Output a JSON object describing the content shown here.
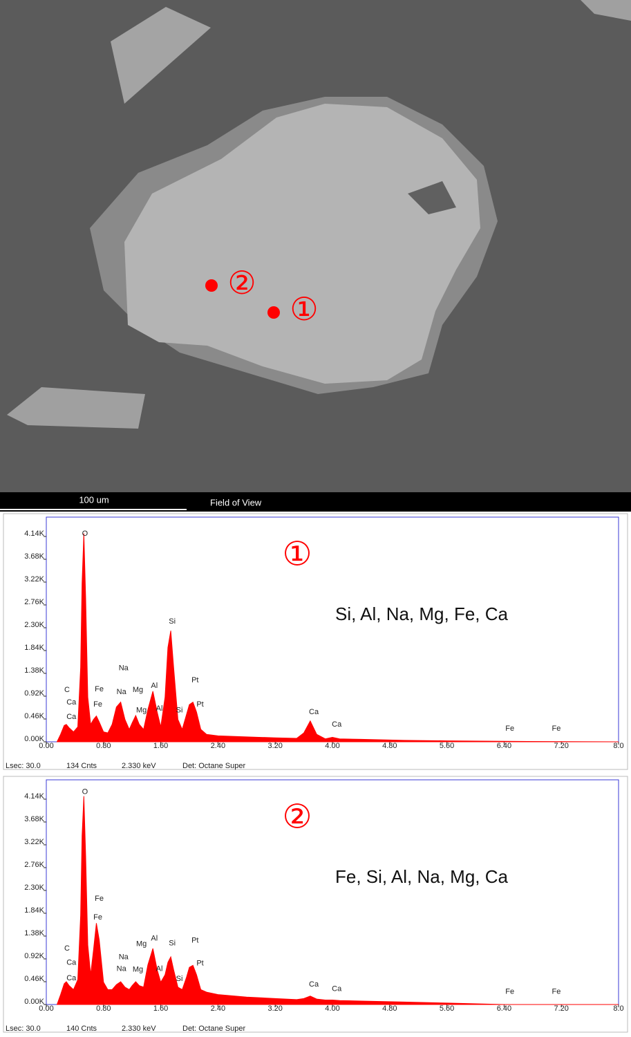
{
  "image": {
    "scale_bar": "100 um",
    "field_label": "Field of View",
    "markers": [
      "①",
      "②"
    ]
  },
  "chart_data": [
    {
      "type": "area",
      "title": "①",
      "annotation": "Si, Al, Na, Mg, Fe, Ca",
      "x": [
        0.15,
        0.2,
        0.25,
        0.28,
        0.32,
        0.38,
        0.44,
        0.48,
        0.5,
        0.525,
        0.55,
        0.58,
        0.62,
        0.66,
        0.7,
        0.74,
        0.8,
        0.86,
        0.92,
        0.98,
        1.04,
        1.1,
        1.16,
        1.2,
        1.25,
        1.3,
        1.36,
        1.42,
        1.49,
        1.55,
        1.6,
        1.66,
        1.7,
        1.74,
        1.78,
        1.84,
        1.9,
        1.96,
        2.0,
        2.05,
        2.1,
        2.16,
        2.24,
        2.4,
        2.8,
        3.2,
        3.5,
        3.6,
        3.69,
        3.78,
        3.9,
        4.0,
        4.1,
        4.4,
        5.0,
        5.6,
        6.4,
        7.0,
        8.0
      ],
      "series": [
        {
          "color": "#ff0000",
          "values": [
            0,
            150,
            330,
            350,
            280,
            200,
            300,
            1500,
            3200,
            4200,
            2900,
            900,
            350,
            450,
            520,
            400,
            200,
            180,
            350,
            700,
            800,
            450,
            250,
            380,
            530,
            350,
            250,
            650,
            1020,
            600,
            300,
            900,
            1900,
            2240,
            1500,
            450,
            250,
            550,
            750,
            800,
            600,
            250,
            150,
            120,
            100,
            80,
            70,
            180,
            420,
            150,
            60,
            90,
            60,
            50,
            30,
            20,
            10,
            5,
            0
          ]
        }
      ],
      "peaks": [
        {
          "label": "C",
          "x": 0.29,
          "y": 1045
        },
        {
          "label": "Ca",
          "x": 0.35,
          "y": 795
        },
        {
          "label": "Ca",
          "x": 0.35,
          "y": 500
        },
        {
          "label": "O",
          "x": 0.54,
          "y": 4195
        },
        {
          "label": "Fe",
          "x": 0.74,
          "y": 1060
        },
        {
          "label": "Fe",
          "x": 0.72,
          "y": 750
        },
        {
          "label": "Na",
          "x": 1.08,
          "y": 1480
        },
        {
          "label": "Na",
          "x": 1.05,
          "y": 1000
        },
        {
          "label": "Mg",
          "x": 1.28,
          "y": 1045
        },
        {
          "label": "Mg",
          "x": 1.33,
          "y": 630
        },
        {
          "label": "Al",
          "x": 1.51,
          "y": 1130
        },
        {
          "label": "Al",
          "x": 1.58,
          "y": 670
        },
        {
          "label": "Si",
          "x": 1.76,
          "y": 2425
        },
        {
          "label": "Si",
          "x": 1.86,
          "y": 630
        },
        {
          "label": "Pt",
          "x": 2.08,
          "y": 1240
        },
        {
          "label": "Pt",
          "x": 2.15,
          "y": 750
        },
        {
          "label": "Ca",
          "x": 3.74,
          "y": 600
        },
        {
          "label": "Ca",
          "x": 4.06,
          "y": 350
        },
        {
          "label": "Fe",
          "x": 6.48,
          "y": 265
        },
        {
          "label": "Fe",
          "x": 7.13,
          "y": 265
        }
      ],
      "xlim": [
        0,
        8
      ],
      "xticks": [
        {
          "value": 0,
          "label": "0.00"
        },
        {
          "value": 0.8,
          "label": "0.80"
        },
        {
          "value": 1.6,
          "label": "1.60"
        },
        {
          "value": 2.4,
          "label": "2.40"
        },
        {
          "value": 3.2,
          "label": "3.20"
        },
        {
          "value": 4,
          "label": "4.00"
        },
        {
          "value": 4.8,
          "label": "4.80"
        },
        {
          "value": 5.6,
          "label": "5.60"
        },
        {
          "value": 6.4,
          "label": "6.40"
        },
        {
          "value": 7.2,
          "label": "7.20"
        },
        {
          "value": 8,
          "label": "8.0"
        }
      ],
      "ylim": [
        0,
        4530
      ],
      "yticks": [
        {
          "value": 0,
          "label": "0.00K"
        },
        {
          "value": 460,
          "label": "0.46K"
        },
        {
          "value": 920,
          "label": "0.92K"
        },
        {
          "value": 1380,
          "label": "1.38K"
        },
        {
          "value": 1840,
          "label": "1.84K"
        },
        {
          "value": 2300,
          "label": "2.30K"
        },
        {
          "value": 2760,
          "label": "2.76K"
        },
        {
          "value": 3220,
          "label": "3.22K"
        },
        {
          "value": 3680,
          "label": "3.68K"
        },
        {
          "value": 4140,
          "label": "4.14K"
        }
      ],
      "footer": [
        "Lsec: 30.0",
        "134 Cnts",
        "2.330 keV",
        "Det: Octane Super"
      ]
    },
    {
      "type": "area",
      "title": "②",
      "annotation": "Fe, Si, Al, Na, Mg, Ca",
      "x": [
        0.15,
        0.2,
        0.25,
        0.28,
        0.32,
        0.38,
        0.44,
        0.48,
        0.5,
        0.525,
        0.55,
        0.58,
        0.62,
        0.66,
        0.7,
        0.74,
        0.8,
        0.86,
        0.92,
        0.98,
        1.04,
        1.1,
        1.16,
        1.2,
        1.25,
        1.3,
        1.36,
        1.42,
        1.49,
        1.55,
        1.6,
        1.66,
        1.7,
        1.74,
        1.78,
        1.84,
        1.9,
        1.96,
        2.0,
        2.05,
        2.1,
        2.16,
        2.24,
        2.4,
        2.8,
        3.2,
        3.5,
        3.6,
        3.69,
        3.78,
        3.9,
        4.0,
        4.1,
        4.4,
        5.0,
        5.6,
        6.4,
        7.0,
        8.0
      ],
      "series": [
        {
          "color": "#ff0000",
          "values": [
            0,
            200,
            420,
            460,
            380,
            300,
            500,
            1800,
            3400,
            4200,
            3000,
            1200,
            600,
            1100,
            1640,
            1300,
            450,
            300,
            300,
            400,
            460,
            350,
            300,
            380,
            460,
            380,
            350,
            800,
            1130,
            700,
            450,
            600,
            850,
            960,
            700,
            350,
            300,
            550,
            750,
            790,
            600,
            300,
            250,
            200,
            150,
            120,
            100,
            120,
            170,
            110,
            90,
            90,
            80,
            70,
            50,
            30,
            0,
            0,
            0
          ]
        }
      ],
      "peaks": [
        {
          "label": "C",
          "x": 0.29,
          "y": 1130
        },
        {
          "label": "Ca",
          "x": 0.35,
          "y": 840
        },
        {
          "label": "Ca",
          "x": 0.35,
          "y": 530
        },
        {
          "label": "O",
          "x": 0.54,
          "y": 4285
        },
        {
          "label": "Fe",
          "x": 0.74,
          "y": 2130
        },
        {
          "label": "Fe",
          "x": 0.72,
          "y": 1755
        },
        {
          "label": "Mg",
          "x": 1.33,
          "y": 1215
        },
        {
          "label": "Al",
          "x": 1.51,
          "y": 1330
        },
        {
          "label": "Na",
          "x": 1.08,
          "y": 955
        },
        {
          "label": "Na",
          "x": 1.05,
          "y": 715
        },
        {
          "label": "Mg",
          "x": 1.28,
          "y": 700
        },
        {
          "label": "Al",
          "x": 1.58,
          "y": 715
        },
        {
          "label": "Si",
          "x": 1.76,
          "y": 1230
        },
        {
          "label": "Si",
          "x": 1.86,
          "y": 515
        },
        {
          "label": "Pt",
          "x": 2.08,
          "y": 1285
        },
        {
          "label": "Pt",
          "x": 2.15,
          "y": 830
        },
        {
          "label": "Ca",
          "x": 3.74,
          "y": 400
        },
        {
          "label": "Ca",
          "x": 4.06,
          "y": 315
        },
        {
          "label": "Fe",
          "x": 6.48,
          "y": 255
        },
        {
          "label": "Fe",
          "x": 7.13,
          "y": 255
        }
      ],
      "xlim": [
        0,
        8
      ],
      "xticks": [
        {
          "value": 0,
          "label": "0.00"
        },
        {
          "value": 0.8,
          "label": "0.80"
        },
        {
          "value": 1.6,
          "label": "1.60"
        },
        {
          "value": 2.4,
          "label": "2.40"
        },
        {
          "value": 3.2,
          "label": "3.20"
        },
        {
          "value": 4,
          "label": "4.00"
        },
        {
          "value": 4.8,
          "label": "4.80"
        },
        {
          "value": 5.6,
          "label": "5.60"
        },
        {
          "value": 6.4,
          "label": "6.40"
        },
        {
          "value": 7.2,
          "label": "7.20"
        },
        {
          "value": 8,
          "label": "8.0"
        }
      ],
      "ylim": [
        0,
        4530
      ],
      "yticks": [
        {
          "value": 0,
          "label": "0.00K"
        },
        {
          "value": 460,
          "label": "0.46K"
        },
        {
          "value": 920,
          "label": "0.92K"
        },
        {
          "value": 1380,
          "label": "1.38K"
        },
        {
          "value": 1840,
          "label": "1.84K"
        },
        {
          "value": 2300,
          "label": "2.30K"
        },
        {
          "value": 2760,
          "label": "2.76K"
        },
        {
          "value": 3220,
          "label": "3.22K"
        },
        {
          "value": 3680,
          "label": "3.68K"
        },
        {
          "value": 4140,
          "label": "4.14K"
        }
      ],
      "footer": [
        "Lsec: 30.0",
        "140 Cnts",
        "2.330 keV",
        "Det: Octane Super"
      ]
    }
  ]
}
